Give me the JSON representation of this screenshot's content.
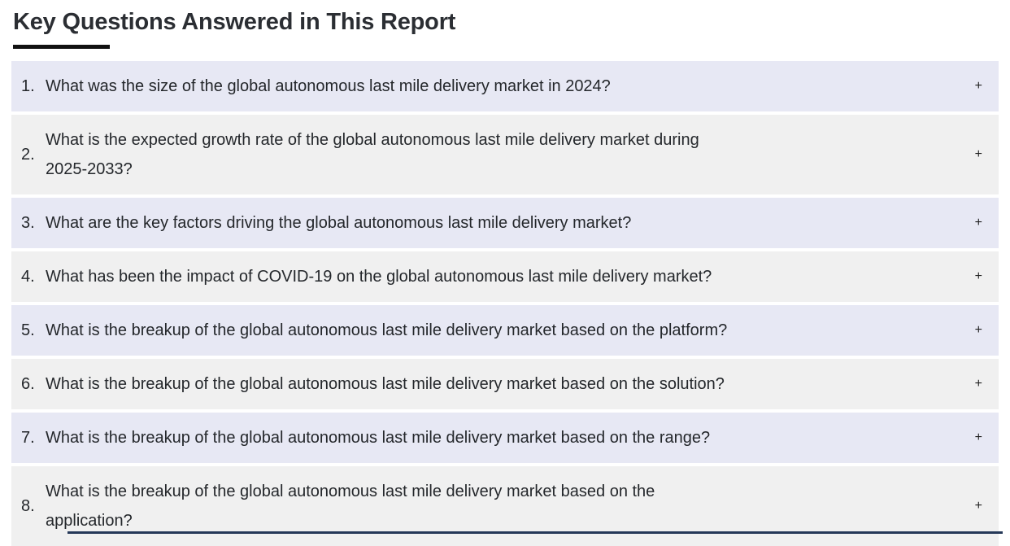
{
  "header": {
    "title": "Key Questions Answered in This Report",
    "underline_color": "#111111"
  },
  "faq": {
    "expand_symbol": "+",
    "row_color_odd": "#e7e8f4",
    "row_color_even": "#f0f0f0",
    "text_color": "#24272b",
    "items": [
      {
        "number": "1.",
        "lines": [
          "What was the size of the global autonomous last mile delivery market in 2024?"
        ]
      },
      {
        "number": "2.",
        "lines": [
          "What is the expected growth rate of the global autonomous last mile delivery market during",
          "2025-2033?"
        ]
      },
      {
        "number": "3.",
        "lines": [
          "What are the key factors driving the global autonomous last mile delivery market?"
        ]
      },
      {
        "number": "4.",
        "lines": [
          "What has been the impact of COVID-19 on the global autonomous last mile delivery market?"
        ]
      },
      {
        "number": "5.",
        "lines": [
          "What is the breakup of the global autonomous last mile delivery market based on the platform?"
        ]
      },
      {
        "number": "6.",
        "lines": [
          "What is the breakup of the global autonomous last mile delivery market based on the solution?"
        ]
      },
      {
        "number": "7.",
        "lines": [
          "What is the breakup of the global autonomous last mile delivery market based on the range?"
        ]
      },
      {
        "number": "8.",
        "lines": [
          "What is the breakup of the global autonomous last mile delivery market based on the",
          "application?"
        ]
      }
    ]
  },
  "footer": {
    "next_section_edge_color": "#253858"
  }
}
